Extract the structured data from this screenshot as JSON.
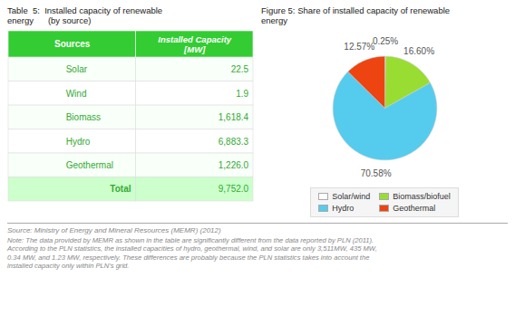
{
  "chart_data": [
    {
      "type": "table",
      "title": "Table  5:  Installed capacity of renewable\nenergy      (by source)",
      "columns": [
        "Sources",
        "Installed Capacity\n[MW]"
      ],
      "categories": [
        "Solar",
        "Wind",
        "Biomass",
        "Hydro",
        "Geothermal"
      ],
      "values": [
        22.5,
        1.9,
        1618.4,
        6883.3,
        1226.0
      ],
      "value_labels": [
        "22.5",
        "1.9",
        "1,618.4",
        "6,883.3",
        "1,226.0"
      ],
      "total_label": "Total",
      "total": 9752.0,
      "total_value_label": "9,752.0",
      "color": "#33aa33"
    },
    {
      "type": "pie",
      "title": "Figure 5: Share of installed capacity of renewable\nenergy",
      "categories": [
        "Solar/wind",
        "Biomass/biofuel",
        "Hydro",
        "Geothermal"
      ],
      "values": [
        0.25,
        16.6,
        70.58,
        12.57
      ],
      "value_labels": [
        "0.25%",
        "16.60%",
        "70.58%",
        "12.57%"
      ],
      "colors": [
        "#ffffff",
        "#99dd33",
        "#55ccee",
        "#ee4411"
      ],
      "data_labels": true,
      "legend": "bottom",
      "source": "Source: Ministry of Energy and Mineral Resources (MEMR) (2012)",
      "note": "Note: The data provided by MEMR as shown in the table are significantly different from the data reported by PLN (2011).\nAccording to the PLN statistics, the installed capacities of hydro, geothermal, wind, and solar are only 3,511MW, 435 MW,\n0.34 MW, and 1.23 MW, respectively. These differences are probably because the PLN statistics takes into account the\ninstalled capacity only within PLN's grid."
    }
  ]
}
